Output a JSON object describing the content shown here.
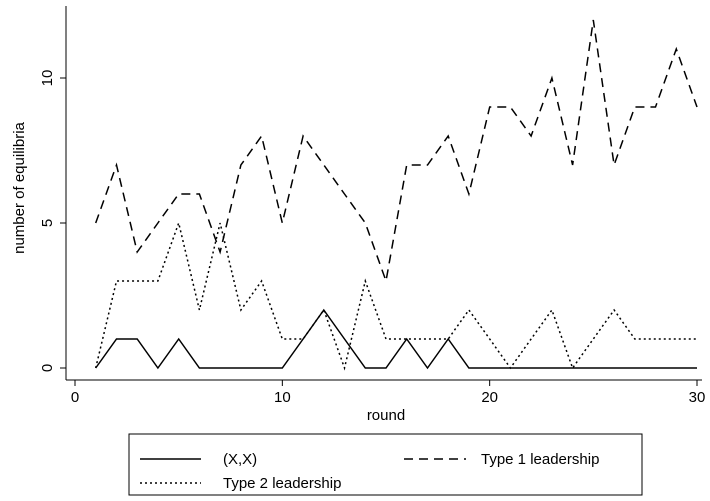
{
  "chart_data": {
    "type": "line",
    "xlabel": "round",
    "ylabel": "number of equilibria",
    "xlim": [
      0,
      30
    ],
    "ylim": [
      0,
      12
    ],
    "xticks": [
      0,
      10,
      20,
      30
    ],
    "yticks": [
      0,
      5,
      10
    ],
    "x": [
      1,
      2,
      3,
      4,
      5,
      6,
      7,
      8,
      9,
      10,
      11,
      12,
      13,
      14,
      15,
      16,
      17,
      18,
      19,
      20,
      21,
      22,
      23,
      24,
      25,
      26,
      27,
      28,
      29,
      30
    ],
    "series": [
      {
        "name": "(X,X)",
        "style": "solid",
        "values": [
          0,
          1,
          1,
          0,
          1,
          0,
          0,
          0,
          0,
          0,
          1,
          2,
          1,
          0,
          0,
          1,
          0,
          1,
          0,
          0,
          0,
          0,
          0,
          0,
          0,
          0,
          0,
          0,
          0,
          0
        ]
      },
      {
        "name": "Type 1 leadership",
        "style": "dashed",
        "values": [
          5,
          7,
          4,
          5,
          6,
          6,
          4,
          7,
          8,
          5,
          8,
          7,
          6,
          5,
          3,
          7,
          7,
          8,
          6,
          9,
          9,
          8,
          10,
          7,
          12,
          7,
          9,
          9,
          11,
          9
        ]
      },
      {
        "name": "Type 2 leadership",
        "style": "dotted",
        "values": [
          0,
          3,
          3,
          3,
          5,
          2,
          5,
          2,
          3,
          1,
          1,
          2,
          0,
          3,
          1,
          1,
          1,
          1,
          2,
          1,
          0,
          1,
          2,
          0,
          1,
          2,
          1,
          1,
          1,
          1
        ]
      }
    ],
    "legend": {
      "placement": "bottom",
      "order": [
        "(X,X)",
        "Type 1 leadership",
        "Type 2 leadership"
      ]
    },
    "grid": false,
    "line_color": "#000000"
  }
}
